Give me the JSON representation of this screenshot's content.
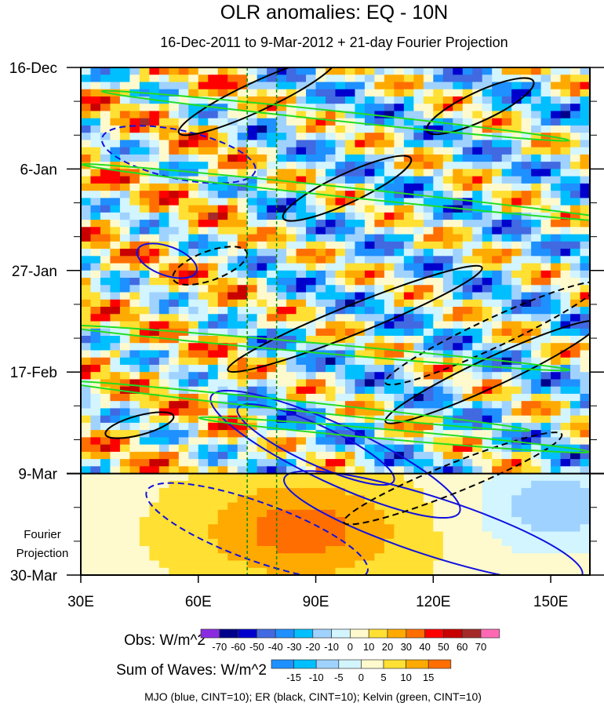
{
  "chart_data": {
    "type": "heatmap",
    "title": "OLR anomalies: EQ - 10N",
    "subtitle": "16-Dec-2011 to 9-Mar-2012 + 21-day Fourier Projection",
    "xlim": [
      30,
      160
    ],
    "x_ticks": [
      {
        "v": 30,
        "label": "30E"
      },
      {
        "v": 60,
        "label": "60E"
      },
      {
        "v": 90,
        "label": "90E"
      },
      {
        "v": 120,
        "label": "120E"
      },
      {
        "v": 150,
        "label": "150E"
      }
    ],
    "y_range_days": [
      0,
      105
    ],
    "y_ticks": [
      {
        "d": 0,
        "label": "16-Dec"
      },
      {
        "d": 21,
        "label": "6-Jan"
      },
      {
        "d": 42,
        "label": "27-Jan"
      },
      {
        "d": 63,
        "label": "17-Feb"
      },
      {
        "d": 84,
        "label": "9-Mar"
      },
      {
        "d": 105,
        "label": "30-Mar"
      }
    ],
    "projection_label": [
      "Fourier",
      "Projection"
    ],
    "projection_start_day": 84,
    "vertical_reference_lons": [
      72.5,
      80
    ],
    "obs_colorbar": {
      "label": "Obs: W/m^2",
      "levels": [
        "-70",
        "-60",
        "-50",
        "-40",
        "-30",
        "-20",
        "-10",
        "0",
        "10",
        "20",
        "30",
        "40",
        "50",
        "60",
        "70"
      ],
      "colors": [
        "#8a2be2",
        "#00008b",
        "#0000cd",
        "#4169e1",
        "#1e90ff",
        "#00bfff",
        "#a0d2ff",
        "#d2f5ff",
        "#fffacd",
        "#ffe033",
        "#ffaa00",
        "#ff6e00",
        "#ff0000",
        "#c80000",
        "#a52a2a",
        "#ff69b4"
      ]
    },
    "waves_colorbar": {
      "label": "Sum of Waves: W/m^2",
      "levels": [
        "-15",
        "-10",
        "-5",
        "0",
        "5",
        "10",
        "15"
      ],
      "colors": [
        "#1e90ff",
        "#00bfff",
        "#a0d2ff",
        "#d2f5ff",
        "#fffacd",
        "#ffe033",
        "#ffaa00",
        "#ff6e00"
      ]
    },
    "contour_legend": "MJO (blue, CINT=10); ER (black, CINT=10); Kelvin (green, CINT=10)",
    "contour_colors": {
      "mjo": "#1010e0",
      "er": "#000000",
      "kelvin": "#22dd22"
    },
    "contours": [
      {
        "wave": "mjo",
        "lon": 55,
        "day": 18,
        "rx": 20,
        "ry": 5,
        "rot": 12,
        "dashed": true
      },
      {
        "wave": "mjo",
        "lon": 52,
        "day": 40,
        "rx": 8,
        "ry": 3,
        "rot": 20,
        "dashed": false
      },
      {
        "wave": "mjo",
        "lon": 95,
        "day": 80,
        "rx": 35,
        "ry": 6,
        "rot": 25,
        "dashed": false
      },
      {
        "wave": "mjo",
        "lon": 90,
        "day": 78,
        "rx": 22,
        "ry": 4,
        "rot": 25,
        "dashed": false
      },
      {
        "wave": "mjo",
        "lon": 75,
        "day": 96,
        "rx": 30,
        "ry": 6,
        "rot": 20,
        "dashed": true
      },
      {
        "wave": "mjo",
        "lon": 120,
        "day": 95,
        "rx": 40,
        "ry": 6,
        "rot": 18,
        "dashed": false
      },
      {
        "wave": "er",
        "lon": 75,
        "day": 6,
        "rx": 22,
        "ry": 3,
        "rot": -25,
        "dashed": false
      },
      {
        "wave": "er",
        "lon": 98,
        "day": 25,
        "rx": 18,
        "ry": 3,
        "rot": -25,
        "dashed": false
      },
      {
        "wave": "er",
        "lon": 63,
        "day": 41,
        "rx": 10,
        "ry": 3,
        "rot": -20,
        "dashed": true
      },
      {
        "wave": "er",
        "lon": 100,
        "day": 52,
        "rx": 35,
        "ry": 3,
        "rot": -22,
        "dashed": false
      },
      {
        "wave": "er",
        "lon": 135,
        "day": 55,
        "rx": 30,
        "ry": 3,
        "rot": -25,
        "dashed": true
      },
      {
        "wave": "er",
        "lon": 135,
        "day": 63,
        "rx": 30,
        "ry": 3,
        "rot": -25,
        "dashed": false
      },
      {
        "wave": "er",
        "lon": 45,
        "day": 74,
        "rx": 9,
        "ry": 2,
        "rot": -15,
        "dashed": false
      },
      {
        "wave": "er",
        "lon": 125,
        "day": 85,
        "rx": 30,
        "ry": 3,
        "rot": -22,
        "dashed": true
      },
      {
        "wave": "er",
        "lon": 132,
        "day": 8,
        "rx": 15,
        "ry": 3,
        "rot": -25,
        "dashed": false
      },
      {
        "wave": "kelvin",
        "lon": 95,
        "day": 10,
        "rx": 60,
        "ry": 1,
        "rot": 6,
        "dashed": false
      },
      {
        "wave": "kelvin",
        "lon": 100,
        "day": 26,
        "rx": 70,
        "ry": 1,
        "rot": 6,
        "dashed": false
      },
      {
        "wave": "kelvin",
        "lon": 90,
        "day": 58,
        "rx": 65,
        "ry": 1,
        "rot": 5,
        "dashed": false
      },
      {
        "wave": "kelvin",
        "lon": 85,
        "day": 70,
        "rx": 60,
        "ry": 1,
        "rot": 6,
        "dashed": false
      },
      {
        "wave": "kelvin",
        "lon": 110,
        "day": 76,
        "rx": 50,
        "ry": 1,
        "rot": 5,
        "dashed": false
      }
    ]
  }
}
